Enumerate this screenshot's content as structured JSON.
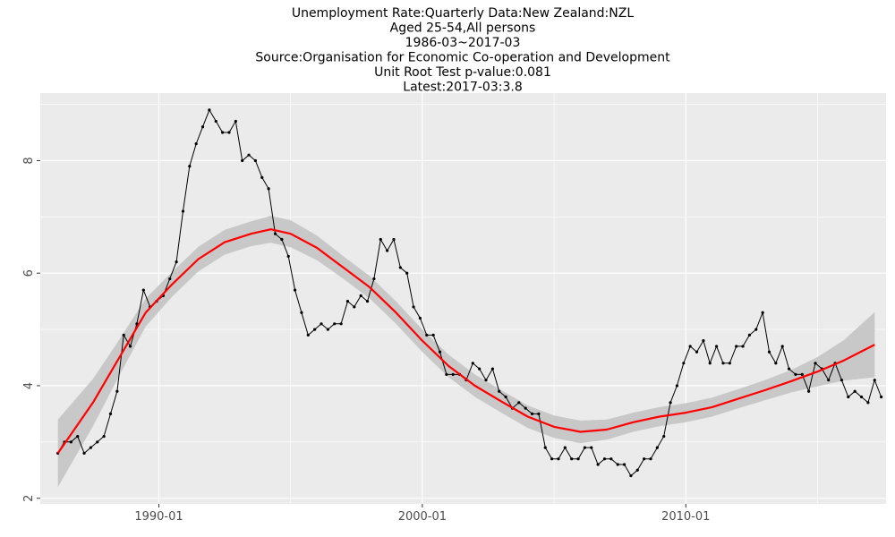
{
  "chart_data": {
    "type": "line",
    "title_lines": [
      "Unemployment Rate:Quarterly Data:New Zealand:NZL",
      "Aged 25-54,All persons",
      "1986-03~2017-03",
      "Source:Organisation for Economic Co-operation and Development",
      "Unit Root Test p-value:0.081",
      "Latest:2017-03:3.8"
    ],
    "xlabel": "",
    "ylabel": "",
    "x_start": "1986-03",
    "x_end": "2017-03",
    "x_frequency": "quarterly",
    "xlim": [
      1985.5,
      2017.6
    ],
    "ylim": [
      1.9,
      9.2
    ],
    "x_ticks": [
      {
        "value": 1990.0,
        "label": "1990-01"
      },
      {
        "value": 2000.0,
        "label": "2000-01"
      },
      {
        "value": 2010.0,
        "label": "2010-01"
      }
    ],
    "y_ticks": [
      {
        "value": 2,
        "label": "2"
      },
      {
        "value": 4,
        "label": "4"
      },
      {
        "value": 6,
        "label": "6"
      },
      {
        "value": 8,
        "label": "8"
      }
    ],
    "grid": true,
    "colors": {
      "panel_background": "#ebebeb",
      "grid_line": "#ffffff",
      "series_line": "#000000",
      "smooth_line": "#ff0000",
      "confidence_band": "#c8c8c8"
    },
    "series": [
      {
        "role": "observed",
        "values": [
          2.8,
          3.0,
          3.0,
          3.1,
          2.8,
          2.9,
          3.0,
          3.1,
          3.5,
          3.9,
          4.9,
          4.7,
          5.1,
          5.7,
          5.4,
          5.5,
          5.6,
          5.9,
          6.2,
          7.1,
          7.9,
          8.3,
          8.6,
          8.9,
          8.7,
          8.5,
          8.5,
          8.7,
          8.0,
          8.1,
          8.0,
          7.7,
          7.5,
          6.7,
          6.6,
          6.3,
          5.7,
          5.3,
          4.9,
          5.0,
          5.1,
          5.0,
          5.1,
          5.1,
          5.5,
          5.4,
          5.6,
          5.5,
          5.9,
          6.6,
          6.4,
          6.6,
          6.1,
          6.0,
          5.4,
          5.2,
          4.9,
          4.9,
          4.6,
          4.2,
          4.2,
          4.2,
          4.1,
          4.4,
          4.3,
          4.1,
          4.3,
          3.9,
          3.8,
          3.6,
          3.7,
          3.6,
          3.5,
          3.5,
          2.9,
          2.7,
          2.7,
          2.9,
          2.7,
          2.7,
          2.9,
          2.9,
          2.6,
          2.7,
          2.7,
          2.6,
          2.6,
          2.4,
          2.5,
          2.7,
          2.7,
          2.9,
          3.1,
          3.7,
          4.0,
          4.4,
          4.7,
          4.6,
          4.8,
          4.4,
          4.7,
          4.4,
          4.4,
          4.7,
          4.7,
          4.9,
          5.0,
          5.3,
          4.6,
          4.4,
          4.7,
          4.3,
          4.2,
          4.2,
          3.9,
          4.4,
          4.3,
          4.1,
          4.4,
          4.1,
          3.8,
          3.9,
          3.8,
          3.7,
          4.1,
          3.8
        ]
      },
      {
        "role": "smoothed",
        "x": [
          1986.17,
          1987.5,
          1988.5,
          1989.5,
          1990.5,
          1991.5,
          1992.5,
          1993.5,
          1994.25,
          1995.0,
          1996.0,
          1997.0,
          1998.0,
          1999.0,
          2000.0,
          2001.0,
          2002.0,
          2003.0,
          2004.0,
          2005.0,
          2006.0,
          2007.0,
          2008.0,
          2009.0,
          2010.0,
          2011.0,
          2012.0,
          2013.0,
          2014.0,
          2015.0,
          2016.0,
          2017.17
        ],
        "values": [
          2.8,
          3.7,
          4.5,
          5.3,
          5.8,
          6.25,
          6.55,
          6.7,
          6.78,
          6.7,
          6.45,
          6.1,
          5.75,
          5.3,
          4.8,
          4.35,
          4.0,
          3.72,
          3.45,
          3.27,
          3.18,
          3.22,
          3.35,
          3.45,
          3.52,
          3.62,
          3.77,
          3.92,
          4.08,
          4.25,
          4.45,
          4.73
        ],
        "band_halfwidth": [
          0.6,
          0.42,
          0.32,
          0.25,
          0.22,
          0.22,
          0.22,
          0.22,
          0.24,
          0.24,
          0.22,
          0.2,
          0.2,
          0.2,
          0.2,
          0.2,
          0.2,
          0.2,
          0.2,
          0.2,
          0.2,
          0.18,
          0.17,
          0.17,
          0.17,
          0.17,
          0.17,
          0.18,
          0.2,
          0.26,
          0.36,
          0.58
        ]
      }
    ]
  }
}
